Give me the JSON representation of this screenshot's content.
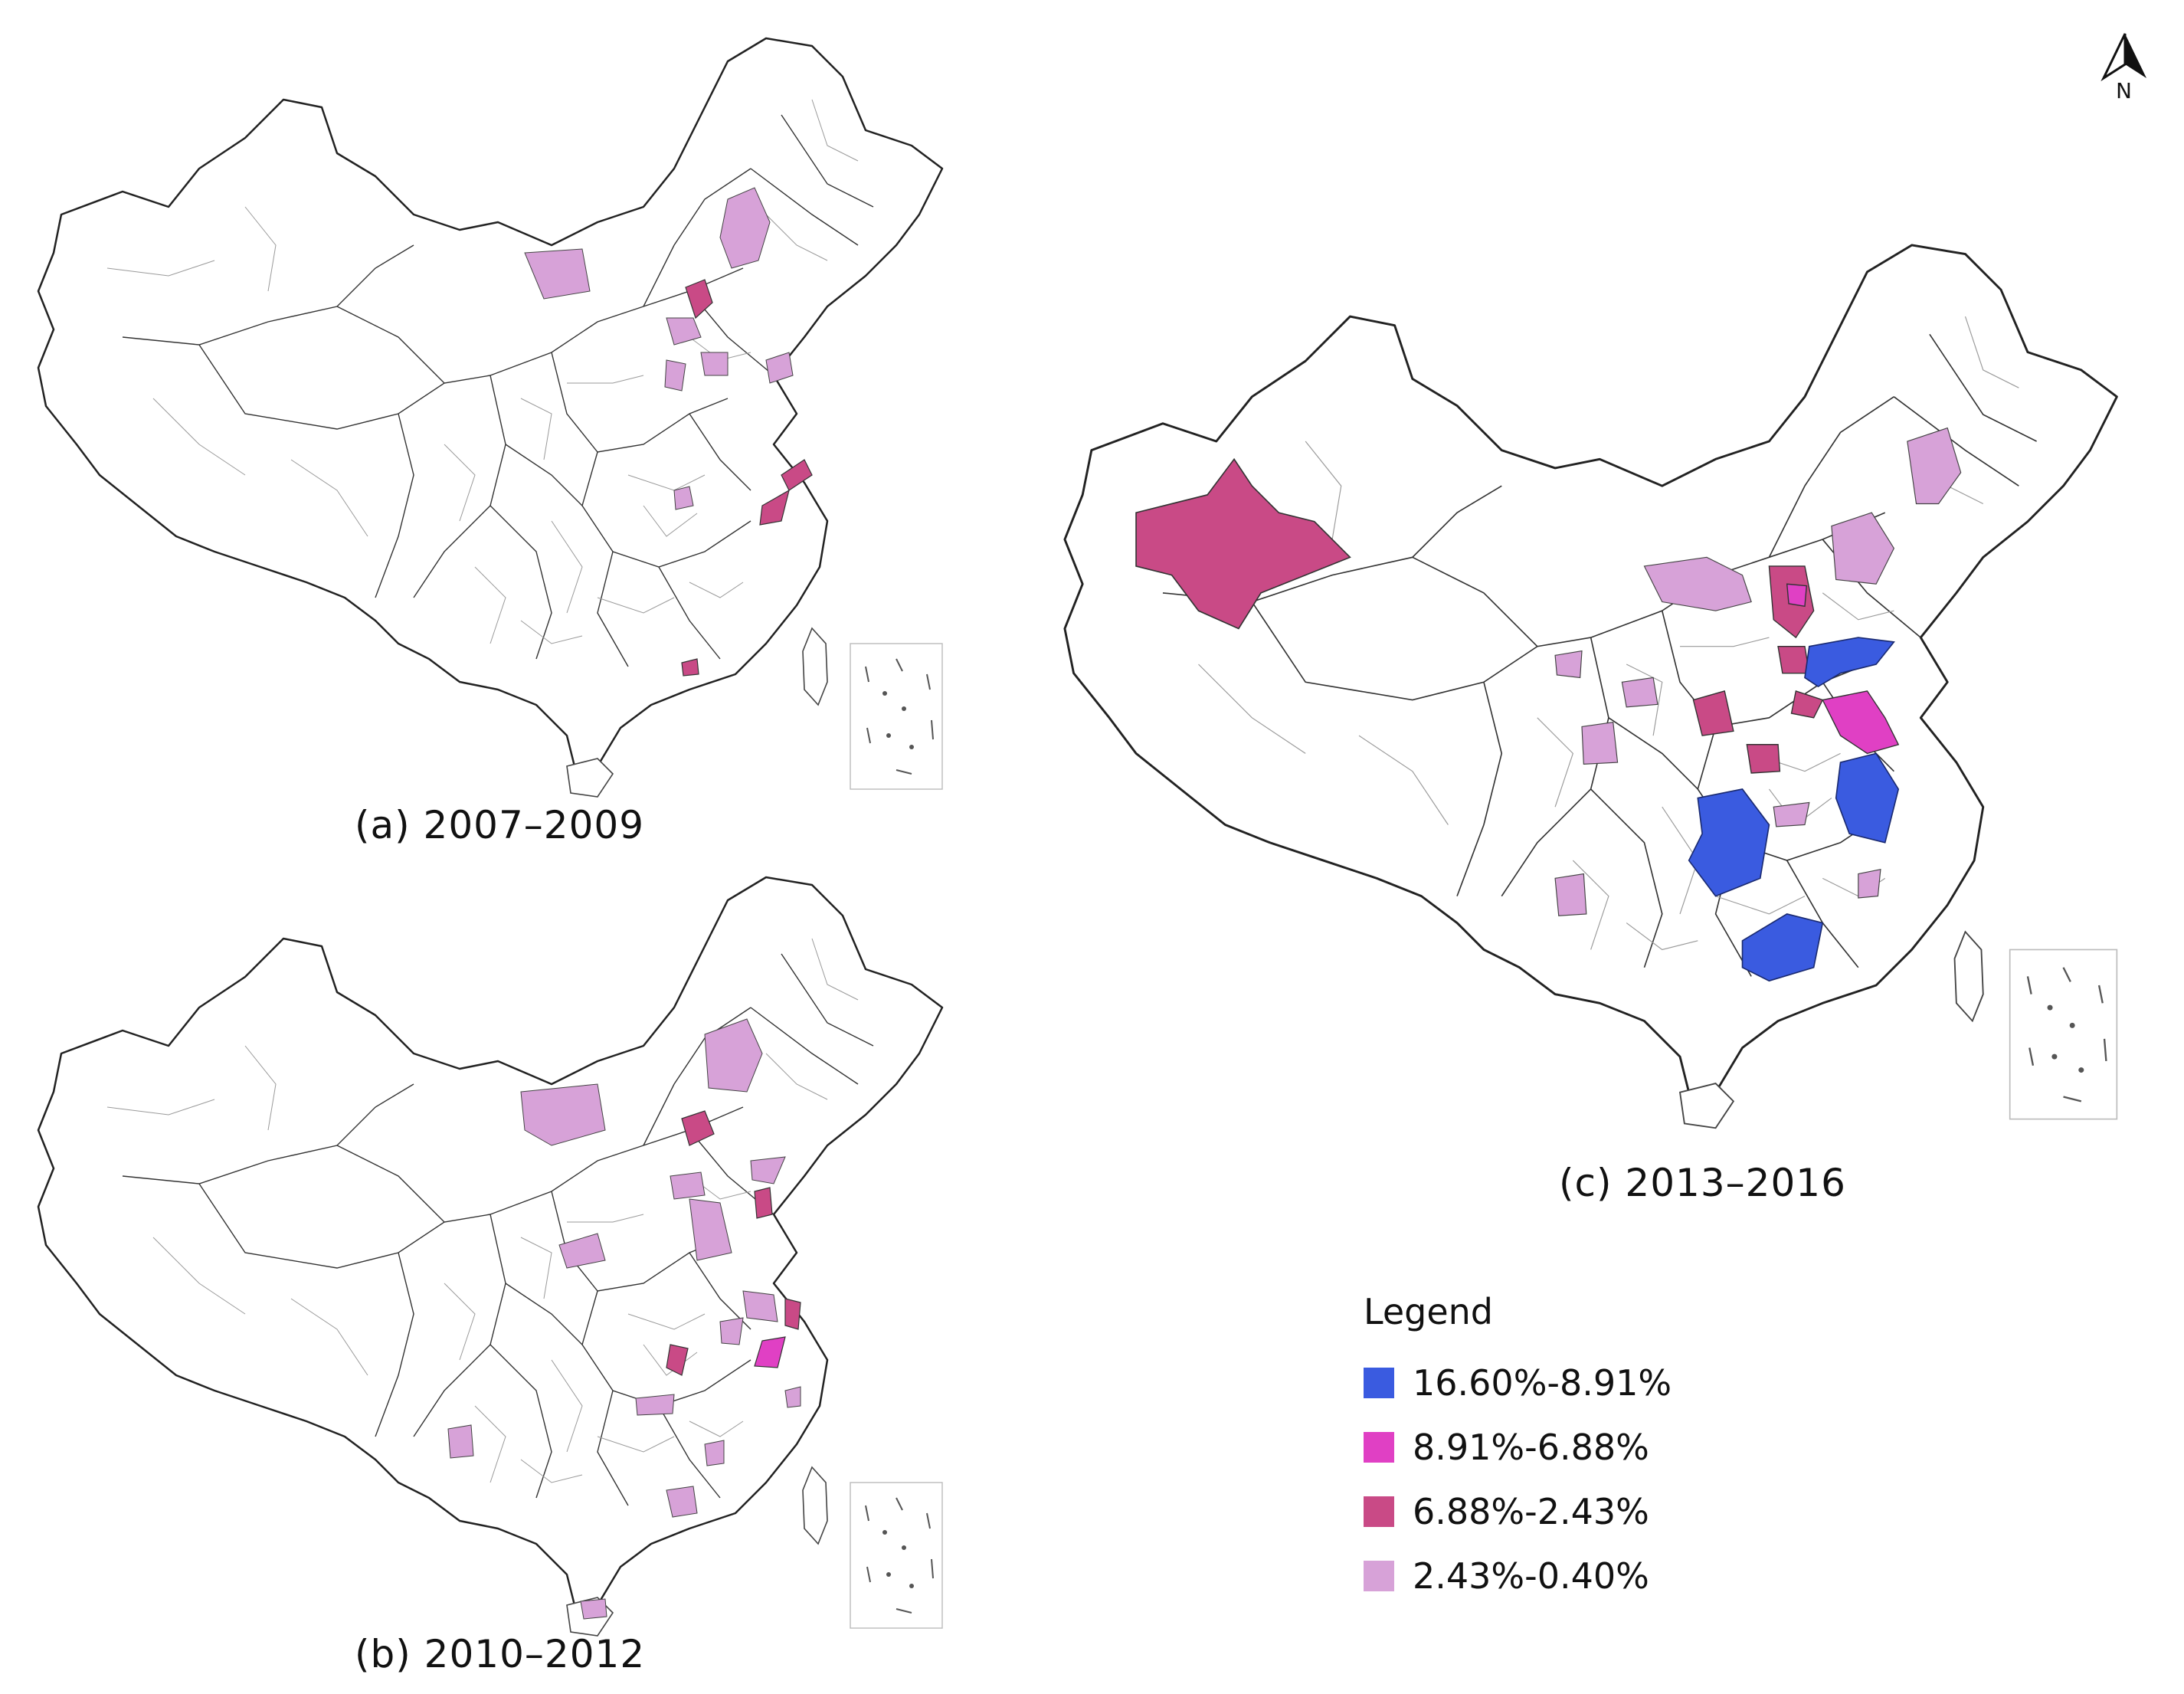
{
  "captions": {
    "a": "(a) 2007–2009",
    "b": "(b) 2010–2012",
    "c": "(c) 2013–2016"
  },
  "north_arrow": {
    "label": "N"
  },
  "legend": {
    "title": "Legend",
    "classes": [
      {
        "label": "16.60%-8.91%",
        "color": "#3a5be0"
      },
      {
        "label": "8.91%-6.88%",
        "color": "#e040c4"
      },
      {
        "label": "6.88%-2.43%",
        "color": "#c94a86"
      },
      {
        "label": "2.43%-0.40%",
        "color": "#d7a2d8"
      }
    ]
  }
}
